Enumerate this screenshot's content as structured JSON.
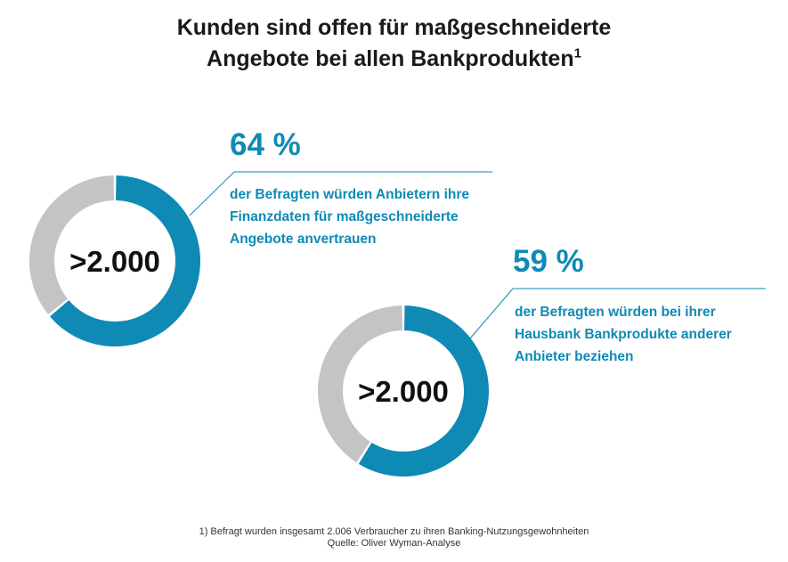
{
  "title": {
    "line1": "Kunden sind offen für maßgeschneiderte",
    "line2": "Angebote bei allen Bankprodukten",
    "footnote_mark": "1"
  },
  "colors": {
    "accent": "#0f8ab5",
    "remainder": "#c4c4c4",
    "text": "#1a1a1a"
  },
  "chart_data": [
    {
      "type": "pie",
      "donut": true,
      "center_label": ">2.000",
      "slices": [
        {
          "label": "64 %",
          "value": 64,
          "color": "#0f8ab5"
        },
        {
          "label": "",
          "value": 36,
          "color": "#c4c4c4"
        }
      ],
      "annotation": {
        "value_text": "64 %",
        "lines": [
          "der Befragten würden Anbietern ihre",
          "Finanzdaten für maßgeschneiderte",
          "Angebote anvertrauen"
        ]
      }
    },
    {
      "type": "pie",
      "donut": true,
      "center_label": ">2.000",
      "slices": [
        {
          "label": "59 %",
          "value": 59,
          "color": "#0f8ab5"
        },
        {
          "label": "",
          "value": 41,
          "color": "#c4c4c4"
        }
      ],
      "annotation": {
        "value_text": "59 %",
        "lines": [
          "der Befragten würden bei ihrer",
          "Hausbank Bankprodukte anderer",
          "Anbieter beziehen"
        ]
      }
    }
  ],
  "footer": {
    "note": "1) Befragt wurden insgesamt 2.006 Verbraucher zu ihren Banking-Nutzungsgewohnheiten",
    "source": "Quelle: Oliver Wyman-Analyse"
  }
}
